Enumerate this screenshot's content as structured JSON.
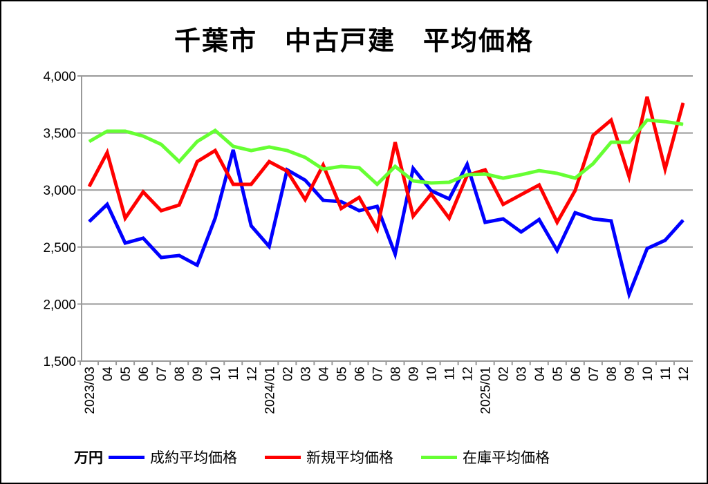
{
  "chart_data": {
    "type": "line",
    "title": "千葉市　中古戸建　平均価格",
    "unit_label": "万円",
    "ylim": [
      1500,
      4000
    ],
    "yticks": [
      "1,500",
      "2,000",
      "2,500",
      "3,000",
      "3,500",
      "4,000"
    ],
    "ytick_values": [
      1500,
      2000,
      2500,
      3000,
      3500,
      4000
    ],
    "grid": true,
    "legend_position": "bottom",
    "x": [
      "2023/03",
      "04",
      "05",
      "06",
      "07",
      "08",
      "09",
      "10",
      "11",
      "12",
      "2024/01",
      "02",
      "03",
      "04",
      "05",
      "06",
      "07",
      "08",
      "09",
      "10",
      "11",
      "12",
      "2025/01",
      "02",
      "03",
      "04",
      "05",
      "06",
      "07",
      "08",
      "09",
      "10",
      "11",
      "12"
    ],
    "series": [
      {
        "name": "成約平均価格",
        "color": "#0000ff",
        "values": [
          2723,
          2874,
          2535,
          2578,
          2408,
          2426,
          2341,
          2753,
          3352,
          2686,
          2505,
          3177,
          3086,
          2910,
          2898,
          2819,
          2856,
          2438,
          3189,
          2994,
          2922,
          3225,
          2717,
          2747,
          2632,
          2741,
          2469,
          2801,
          2747,
          2729,
          2087,
          2487,
          2559,
          2735
        ]
      },
      {
        "name": "新規平均価格",
        "color": "#ff0000",
        "values": [
          3031,
          3328,
          2753,
          2983,
          2819,
          2868,
          3249,
          3346,
          3050,
          3050,
          3249,
          3165,
          2916,
          3219,
          2838,
          2935,
          2656,
          3419,
          2771,
          2965,
          2753,
          3128,
          3177,
          2874,
          2959,
          3044,
          2717,
          2995,
          3480,
          3613,
          3116,
          3818,
          3183,
          3764
        ]
      },
      {
        "name": "在庫平均価格",
        "color": "#66ff33",
        "values": [
          3425,
          3516,
          3516,
          3473,
          3400,
          3249,
          3425,
          3522,
          3383,
          3346,
          3377,
          3346,
          3286,
          3183,
          3207,
          3195,
          3050,
          3207,
          3080,
          3062,
          3068,
          3134,
          3140,
          3104,
          3134,
          3170,
          3146,
          3104,
          3231,
          3419,
          3419,
          3613,
          3600,
          3576
        ]
      }
    ]
  }
}
